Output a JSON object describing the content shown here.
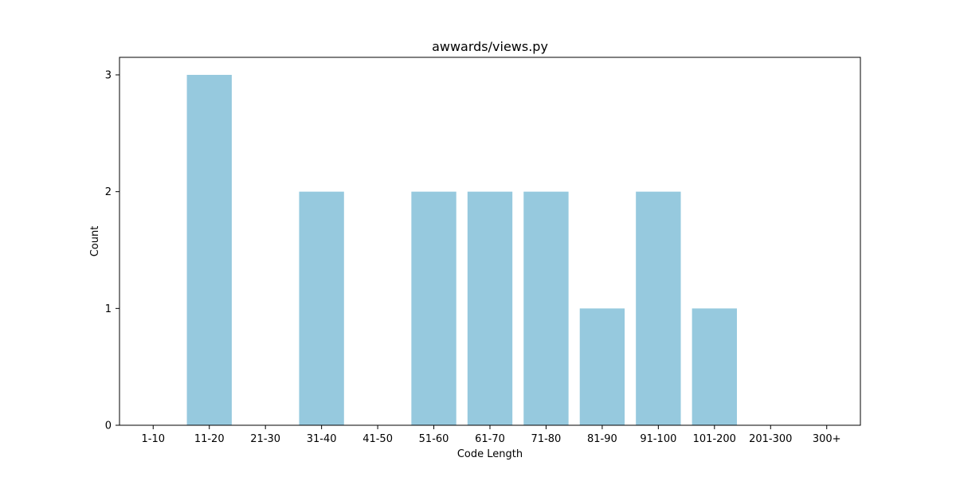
{
  "chart_data": {
    "type": "bar",
    "title": "awwards/views.py",
    "xlabel": "Code Length",
    "ylabel": "Count",
    "categories": [
      "1-10",
      "11-20",
      "21-30",
      "31-40",
      "41-50",
      "51-60",
      "61-70",
      "71-80",
      "81-90",
      "91-100",
      "101-200",
      "201-300",
      "300+"
    ],
    "values": [
      0,
      3,
      0,
      2,
      0,
      2,
      2,
      2,
      1,
      2,
      1,
      0,
      0
    ],
    "ylim": [
      0,
      3.15
    ],
    "yticks": [
      "0",
      "1",
      "2",
      "3"
    ],
    "grid": false,
    "bar_color": "#96c9de"
  }
}
